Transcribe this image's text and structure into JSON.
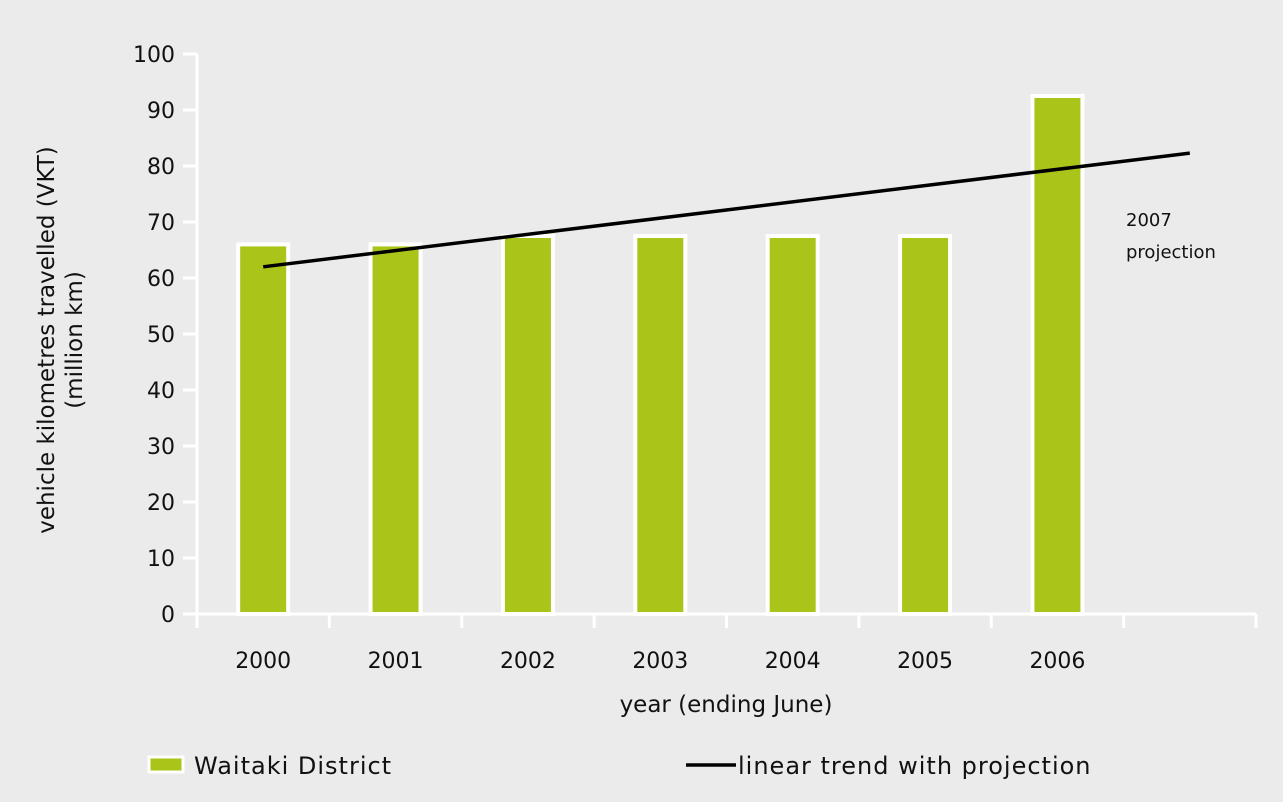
{
  "chart_data": {
    "type": "bar",
    "categories": [
      "2000",
      "2001",
      "2002",
      "2003",
      "2004",
      "2005",
      "2006"
    ],
    "series": [
      {
        "name": "Waitaki District",
        "type": "bar",
        "values": [
          66,
          66,
          67.5,
          67.5,
          67.5,
          67.5,
          92.5
        ]
      },
      {
        "name": "linear trend with projection",
        "type": "line",
        "start": {
          "category": "2000",
          "value": 62
        },
        "end": {
          "category": "2007",
          "value": 82.3
        }
      }
    ],
    "xlabel": "year (ending June)",
    "ylabel_lines": [
      "vehicle kilometres travelled (VKT)",
      "(million km)"
    ],
    "ylim": [
      0,
      100
    ],
    "yticks": [
      0,
      10,
      20,
      30,
      40,
      50,
      60,
      70,
      80,
      90,
      100
    ],
    "annotation_lines": [
      "2007",
      "projection"
    ],
    "legend_position": "bottom",
    "grid": false,
    "colors": {
      "bar": "#abc41a",
      "bar_stroke": "#ffffff",
      "trend": "#000000",
      "axis": "#ffffff",
      "background": "#ebebeb"
    }
  }
}
